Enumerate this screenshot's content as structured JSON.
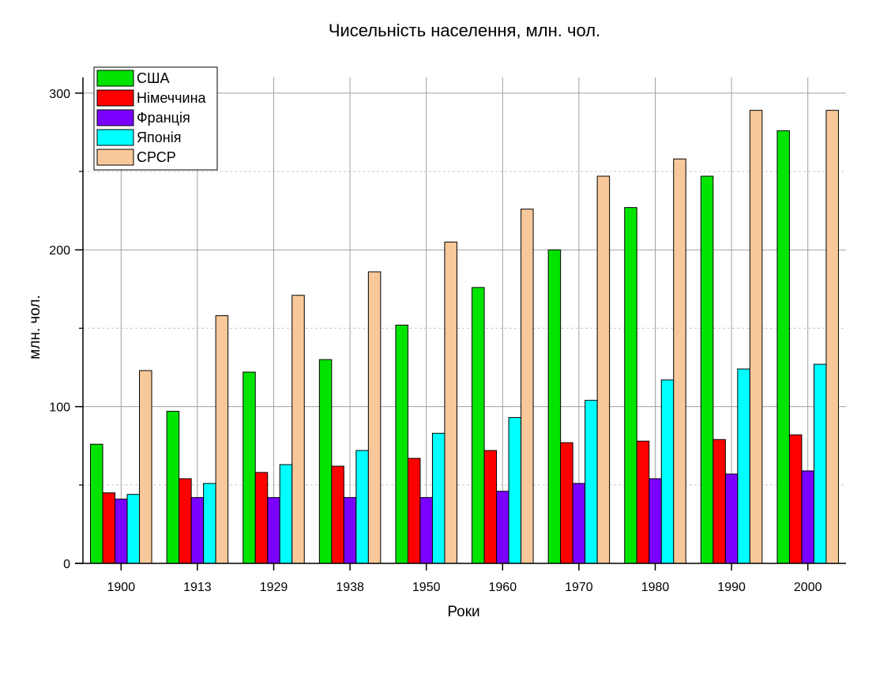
{
  "chart_data": {
    "type": "bar",
    "title": "Чисельність населення, млн. чол.",
    "xlabel": "Роки",
    "ylabel": "млн. чол.",
    "ylim": [
      0,
      310
    ],
    "yticks": [
      0,
      100,
      200,
      300
    ],
    "grid": true,
    "legend_position": "top-left",
    "categories": [
      "1900",
      "1913",
      "1929",
      "1938",
      "1950",
      "1960",
      "1970",
      "1980",
      "1990",
      "2000"
    ],
    "series": [
      {
        "name": "США",
        "color": "#00e400",
        "values": [
          76,
          97,
          122,
          130,
          152,
          176,
          200,
          227,
          247,
          276
        ]
      },
      {
        "name": "Німеччина",
        "color": "#ff0000",
        "values": [
          45,
          54,
          58,
          62,
          67,
          72,
          77,
          78,
          79,
          82
        ]
      },
      {
        "name": "Франція",
        "color": "#7a00ff",
        "values": [
          41,
          42,
          42,
          42,
          42,
          46,
          51,
          54,
          57,
          59
        ]
      },
      {
        "name": "Японія",
        "color": "#00ffff",
        "values": [
          44,
          51,
          63,
          72,
          83,
          93,
          104,
          117,
          124,
          127
        ]
      },
      {
        "name": "СРСР",
        "color": "#f8c89a",
        "values": [
          123,
          158,
          171,
          186,
          205,
          226,
          247,
          258,
          289,
          289
        ]
      }
    ]
  }
}
